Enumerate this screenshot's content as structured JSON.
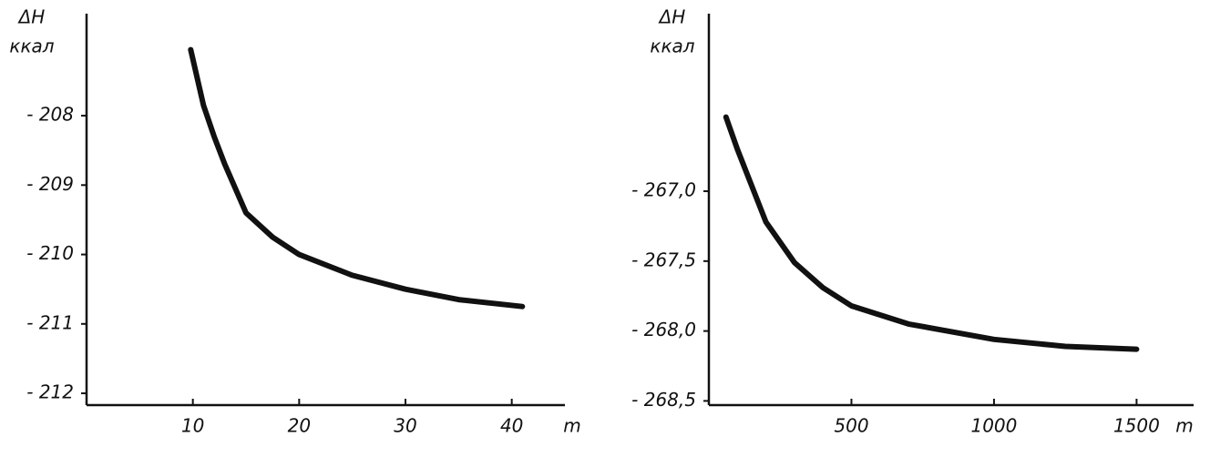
{
  "chart_data": [
    {
      "type": "line",
      "ylabel": "ΔH",
      "yunit": "ккал",
      "xlabel": "m",
      "x": [
        9.8,
        11,
        12,
        13,
        15,
        17.5,
        20,
        25,
        30,
        35,
        41
      ],
      "values": [
        -207.05,
        -207.85,
        -208.3,
        -208.7,
        -209.4,
        -209.75,
        -210.0,
        -210.3,
        -210.5,
        -210.65,
        -210.75
      ],
      "xlim": [
        0,
        45
      ],
      "ylim": [
        -212.17,
        -206.53
      ],
      "xticks": [
        10,
        20,
        30,
        40
      ],
      "yticks": [
        {
          "value": -208,
          "label": "- 208"
        },
        {
          "value": -209,
          "label": "- 209"
        },
        {
          "value": -210,
          "label": "- 210"
        },
        {
          "value": -211,
          "label": "- 211"
        },
        {
          "value": -212,
          "label": "- 212"
        }
      ],
      "color": "#111111"
    },
    {
      "type": "line",
      "ylabel": "ΔH",
      "yunit": "ккал",
      "xlabel": "m",
      "x": [
        60,
        100,
        200,
        300,
        400,
        500,
        700,
        1000,
        1250,
        1500
      ],
      "values": [
        -266.47,
        -266.7,
        -267.22,
        -267.51,
        -267.69,
        -267.82,
        -267.95,
        -268.06,
        -268.11,
        -268.13
      ],
      "xlim": [
        0,
        1700
      ],
      "ylim": [
        -268.53,
        -265.73
      ],
      "xticks": [
        500,
        1000,
        1500
      ],
      "yticks": [
        {
          "value": -267.0,
          "label": "- 267,0"
        },
        {
          "value": -267.5,
          "label": "- 267,5"
        },
        {
          "value": -268.0,
          "label": "- 268,0"
        },
        {
          "value": -268.5,
          "label": "- 268,5"
        }
      ],
      "color": "#111111"
    }
  ]
}
